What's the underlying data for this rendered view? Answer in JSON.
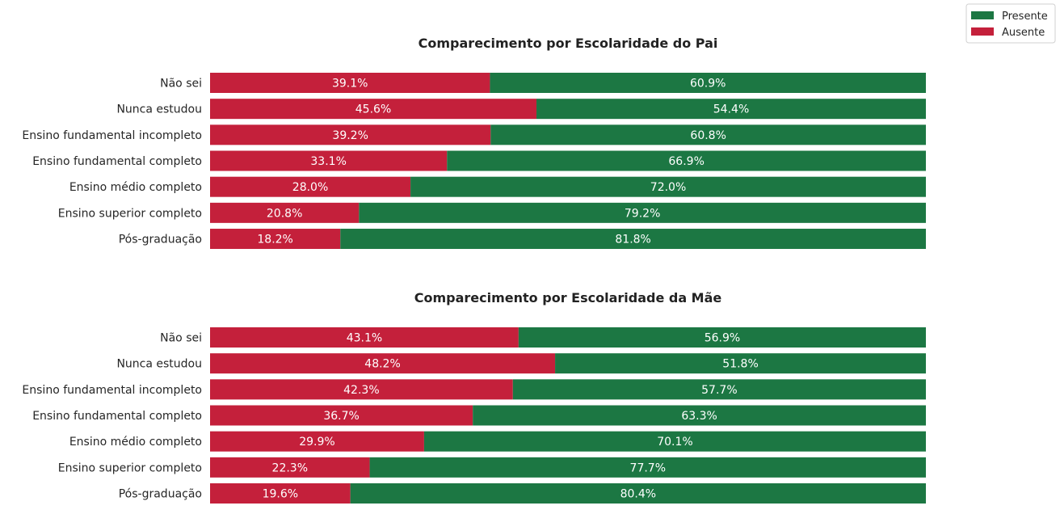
{
  "legend": {
    "items": [
      {
        "label": "Presente",
        "color": "#1c7743"
      },
      {
        "label": "Ausente",
        "color": "#c4203b"
      }
    ]
  },
  "chart_data": [
    {
      "type": "bar",
      "orientation": "horizontal-stacked-100",
      "title": "Comparecimento por Escolaridade do Pai",
      "categories": [
        "Não sei",
        "Nunca estudou",
        "Ensino fundamental incompleto",
        "Ensino fundamental completo",
        "Ensino médio completo",
        "Ensino superior completo",
        "Pós-graduação"
      ],
      "series": [
        {
          "name": "Ausente",
          "color": "#c4203b",
          "values": [
            39.1,
            45.6,
            39.2,
            33.1,
            28.0,
            20.8,
            18.2
          ]
        },
        {
          "name": "Presente",
          "color": "#1c7743",
          "values": [
            60.9,
            54.4,
            60.8,
            66.9,
            72.0,
            79.2,
            81.8
          ]
        }
      ],
      "xlim": [
        0,
        100
      ],
      "grid": false
    },
    {
      "type": "bar",
      "orientation": "horizontal-stacked-100",
      "title": "Comparecimento por Escolaridade da Mãe",
      "categories": [
        "Não sei",
        "Nunca estudou",
        "Ensino fundamental incompleto",
        "Ensino fundamental completo",
        "Ensino médio completo",
        "Ensino superior completo",
        "Pós-graduação"
      ],
      "series": [
        {
          "name": "Ausente",
          "color": "#c4203b",
          "values": [
            43.1,
            48.2,
            42.3,
            36.7,
            29.9,
            22.3,
            19.6
          ]
        },
        {
          "name": "Presente",
          "color": "#1c7743",
          "values": [
            56.9,
            51.8,
            57.7,
            63.3,
            70.1,
            77.7,
            80.4
          ]
        }
      ],
      "xlim": [
        0,
        100
      ],
      "grid": false
    }
  ]
}
